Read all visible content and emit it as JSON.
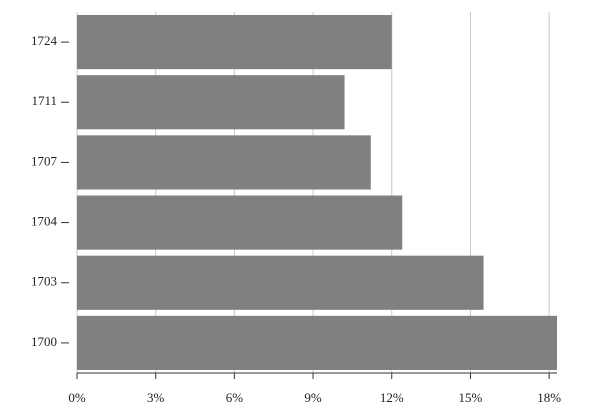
{
  "chart_data": {
    "type": "hbar",
    "categories": [
      "1724",
      "1711",
      "1707",
      "1704",
      "1703",
      "1700"
    ],
    "values": [
      12.0,
      10.2,
      11.2,
      12.4,
      15.5,
      18.3
    ],
    "color": "#808080",
    "xlim": [
      0,
      18.3
    ],
    "xticks": [
      {
        "value": 0,
        "label": "0%"
      },
      {
        "value": 3,
        "label": "3%"
      },
      {
        "value": 6,
        "label": "6%"
      },
      {
        "value": 9,
        "label": "9%"
      },
      {
        "value": 12,
        "label": "12%"
      },
      {
        "value": 15,
        "label": "15%"
      },
      {
        "value": 18,
        "label": "18%"
      }
    ],
    "grid": true
  }
}
